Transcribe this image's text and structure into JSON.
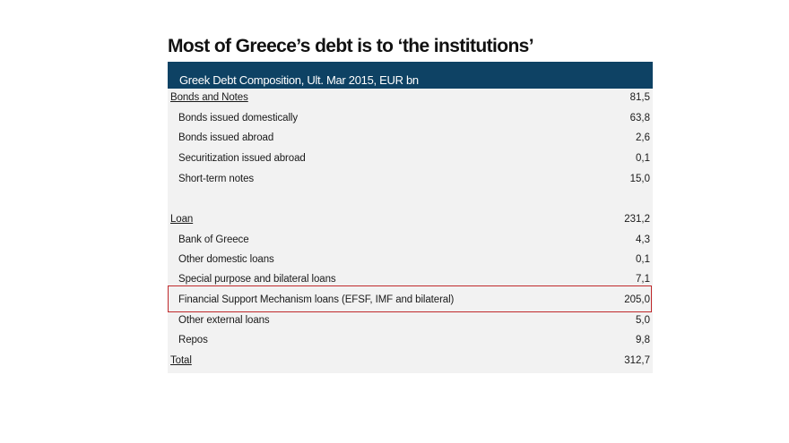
{
  "title": "Most of Greece’s debt is to ‘the institutions’",
  "colors": {
    "header_bg": "#0e4264",
    "table_bg": "#f2f2f2",
    "highlight": "#c0292b"
  },
  "chart_data": {
    "type": "table",
    "header": "Greek Debt Composition, Ult. Mar 2015, EUR bn",
    "rows": [
      {
        "label": "Bonds and Notes",
        "value": "81,5",
        "section": true
      },
      {
        "label": "Bonds issued domestically",
        "value": "63,8"
      },
      {
        "label": "Bonds issued abroad",
        "value": "2,6"
      },
      {
        "label": "Securitization issued abroad",
        "value": "0,1"
      },
      {
        "label": "Short-term notes",
        "value": "15,0"
      },
      {
        "label": "Loan",
        "value": "231,2",
        "section": true
      },
      {
        "label": "Bank of Greece",
        "value": "4,3"
      },
      {
        "label": "Other domestic loans",
        "value": "0,1"
      },
      {
        "label": "Special purpose and bilateral loans",
        "value": "7,1"
      },
      {
        "label": "Financial Support Mechanism loans (EFSF, IMF and bilateral)",
        "value": "205,0",
        "highlighted": true
      },
      {
        "label": "Other external loans",
        "value": "5,0"
      },
      {
        "label": "Repos",
        "value": "9,8"
      },
      {
        "label": "Total",
        "value": "312,7",
        "section": true
      }
    ]
  }
}
